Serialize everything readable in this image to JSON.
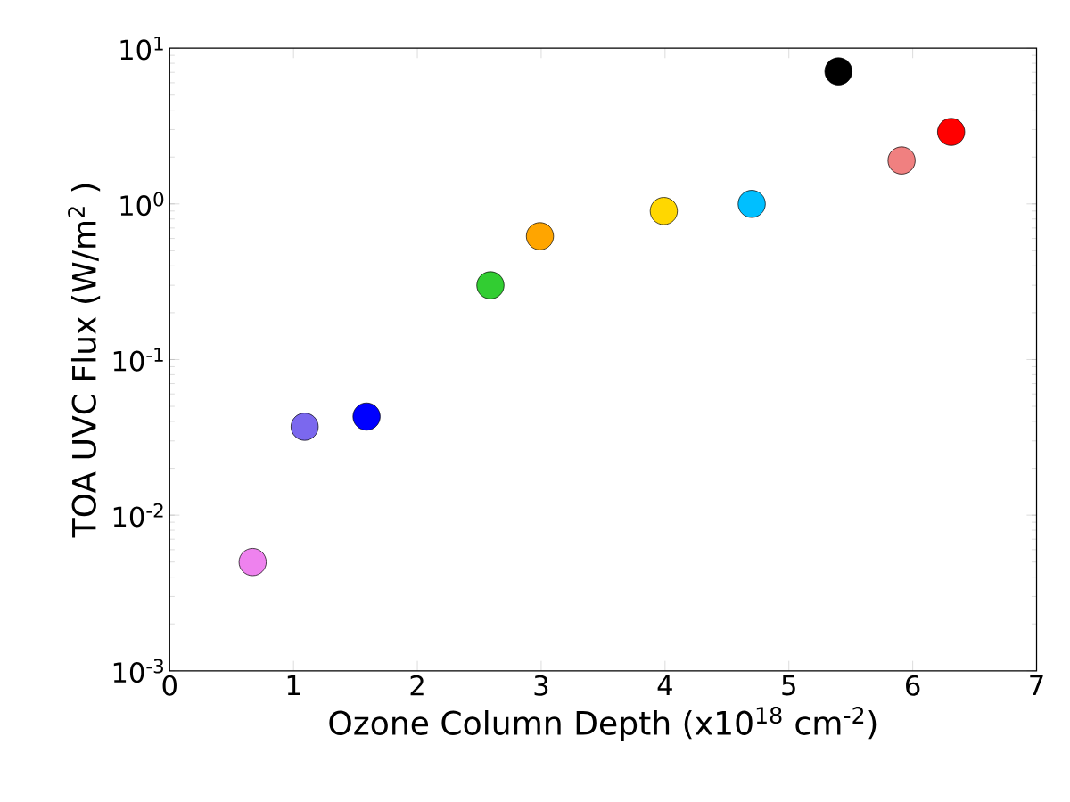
{
  "chart_data": {
    "type": "scatter",
    "xlabel": "Ozone Column Depth (x10$^{18}$ cm$^{-2}$)",
    "ylabel": "TOA UVC Flux (W/m$^{2}$ )",
    "x": [
      0.67,
      1.09,
      1.59,
      2.59,
      2.99,
      3.99,
      4.7,
      5.4,
      5.91,
      6.31
    ],
    "values": [
      0.005,
      0.037,
      0.043,
      0.3,
      0.62,
      0.9,
      1.0,
      7.1,
      1.9,
      2.9
    ],
    "colors": [
      "#ee82ee",
      "#7b68ee",
      "#0000ff",
      "#32cd32",
      "#ffa500",
      "#ffd700",
      "#00bfff",
      "#000000",
      "#f08080",
      "#ff0000"
    ],
    "marker": "circle",
    "log": "y",
    "grid": false,
    "xlim": [
      0,
      7
    ],
    "xticks": [
      0,
      1,
      2,
      3,
      4,
      5,
      6,
      7
    ],
    "ylim": [
      0.001,
      10
    ],
    "yticks": [
      {
        "value": 0.001,
        "label": "10$^{-3}$"
      },
      {
        "value": 0.01,
        "label": "10$^{-2}$"
      },
      {
        "value": 0.1,
        "label": "10$^{-1}$"
      },
      {
        "value": 1,
        "label": "10$^{0}$"
      },
      {
        "value": 10,
        "label": "10$^{1}$"
      }
    ]
  }
}
